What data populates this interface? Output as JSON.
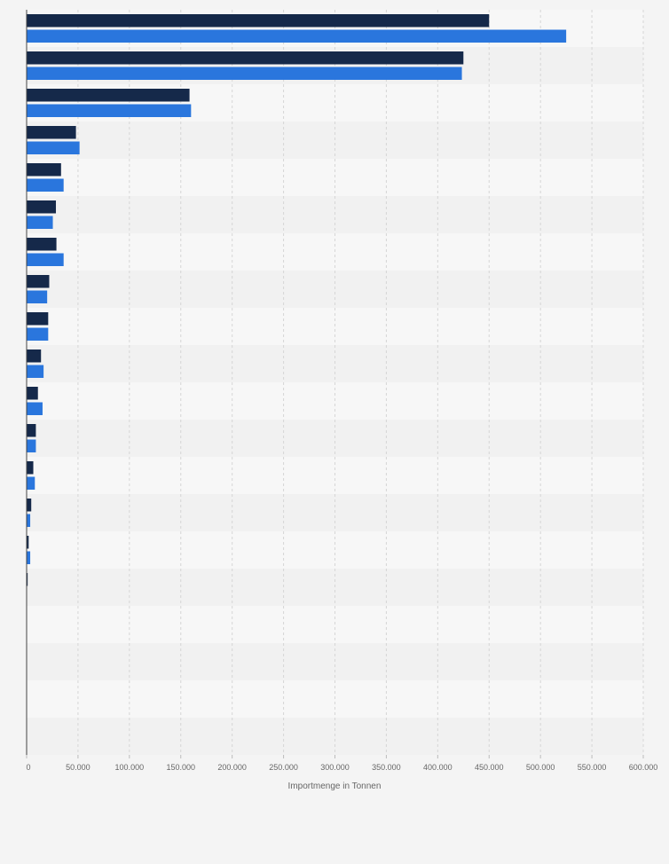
{
  "chart_data": {
    "type": "bar",
    "orientation": "horizontal",
    "xlabel": "Importmenge in Tonnen",
    "xlim": [
      0,
      600000
    ],
    "x_ticks": [
      {
        "value": 0,
        "label": "0"
      },
      {
        "value": 50000,
        "label": "50.000"
      },
      {
        "value": 100000,
        "label": "100.000"
      },
      {
        "value": 150000,
        "label": "150.000"
      },
      {
        "value": 200000,
        "label": "200.000"
      },
      {
        "value": 250000,
        "label": "250.000"
      },
      {
        "value": 300000,
        "label": "300.000"
      },
      {
        "value": 350000,
        "label": "350.000"
      },
      {
        "value": 400000,
        "label": "400.000"
      },
      {
        "value": 450000,
        "label": "450.000"
      },
      {
        "value": 500000,
        "label": "500.000"
      },
      {
        "value": 550000,
        "label": "550.000"
      },
      {
        "value": 600000,
        "label": "600.000"
      }
    ],
    "grid": true,
    "legend": "none",
    "colors": {
      "series_dark": "#15294a",
      "series_blue": "#2a76dd",
      "gridline": "#d6d6d6",
      "axis": "#444444",
      "band_light": "#f7f7f7",
      "band_dark": "#f1f1f1"
    },
    "categories": [
      "",
      "",
      "",
      "",
      "",
      "",
      "",
      "",
      "",
      "",
      "",
      "",
      "",
      "",
      "",
      "",
      "",
      "",
      "",
      ""
    ],
    "series": [
      {
        "values": [
          450000,
          425000,
          158500,
          48000,
          33500,
          28500,
          29000,
          22000,
          21000,
          14000,
          11000,
          9000,
          6500,
          4500,
          2000,
          1000,
          0,
          0,
          0,
          0
        ]
      },
      {
        "values": [
          525000,
          423500,
          160000,
          51500,
          36000,
          25500,
          36000,
          20000,
          21000,
          16500,
          15500,
          9000,
          8000,
          3500,
          3500,
          0,
          0,
          0,
          0,
          0
        ]
      }
    ]
  }
}
